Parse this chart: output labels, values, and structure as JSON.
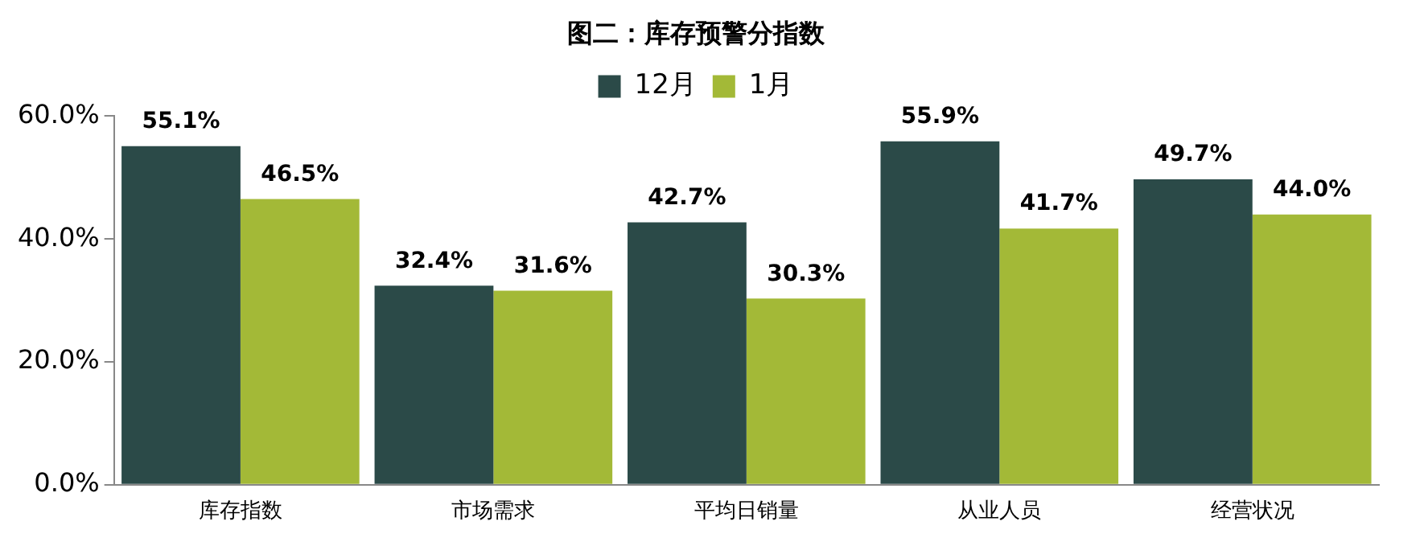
{
  "chart_data": {
    "type": "bar",
    "title": "图二：库存预警分指数",
    "categories": [
      "库存指数",
      "市场需求",
      "平均日销量",
      "从业人员",
      "经营状况"
    ],
    "series": [
      {
        "name": "12月",
        "color": "#2b4a48",
        "values": [
          55.1,
          32.4,
          42.7,
          55.9,
          49.7
        ],
        "value_labels": [
          "55.1%",
          "32.4%",
          "42.7%",
          "55.9%",
          "49.7%"
        ]
      },
      {
        "name": "1月",
        "color": "#a3b937",
        "values": [
          46.5,
          31.6,
          30.3,
          41.7,
          44.0
        ],
        "value_labels": [
          "46.5%",
          "31.6%",
          "30.3%",
          "41.7%",
          "44.0%"
        ]
      }
    ],
    "ylim": [
      0,
      60
    ],
    "yticks": [
      {
        "value": 0,
        "label": "0.0%"
      },
      {
        "value": 20,
        "label": "20.0%"
      },
      {
        "value": 40,
        "label": "40.0%"
      },
      {
        "value": 60,
        "label": "60.0%"
      }
    ],
    "grid": false,
    "legend": "top"
  }
}
